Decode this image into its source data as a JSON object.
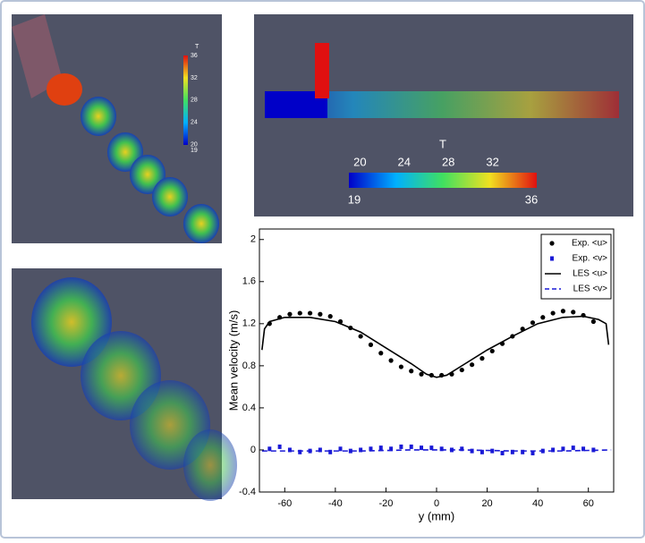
{
  "colorbars": [
    {
      "title": "T",
      "min": 19,
      "max": 36,
      "ticks": [
        20,
        24,
        28,
        32
      ],
      "orientation": "vertical"
    },
    {
      "title": "T",
      "min": 19,
      "max": 36,
      "ticks": [
        20,
        24,
        28,
        32
      ],
      "orientation": "horizontal"
    }
  ],
  "chart_data": {
    "type": "line",
    "xlabel": "y (mm)",
    "ylabel": "Mean velocity (m/s)",
    "xlim": [
      -70,
      70
    ],
    "xticks": [
      -60,
      -40,
      -20,
      0,
      20,
      40,
      60
    ],
    "ylim": [
      -0.4,
      2.1
    ],
    "yticks": [
      -0.4,
      0,
      0.4,
      0.8,
      1.2,
      1.6,
      2
    ],
    "legend": "upper right",
    "series": [
      {
        "name": "Exp. <u>",
        "color": "#000000",
        "marker": "circle",
        "linestyle": "none",
        "x": [
          -66,
          -62,
          -58,
          -54,
          -50,
          -46,
          -42,
          -38,
          -34,
          -30,
          -26,
          -22,
          -18,
          -14,
          -10,
          -6,
          -2,
          2,
          6,
          10,
          14,
          18,
          22,
          26,
          30,
          34,
          38,
          42,
          46,
          50,
          54,
          58,
          62
        ],
        "values": [
          1.2,
          1.26,
          1.29,
          1.3,
          1.3,
          1.29,
          1.27,
          1.22,
          1.16,
          1.08,
          1.0,
          0.92,
          0.85,
          0.79,
          0.75,
          0.72,
          0.71,
          0.71,
          0.72,
          0.76,
          0.81,
          0.87,
          0.94,
          1.01,
          1.08,
          1.15,
          1.21,
          1.26,
          1.3,
          1.32,
          1.31,
          1.28,
          1.22
        ]
      },
      {
        "name": "Exp. <v>",
        "color": "#1a1ad6",
        "marker": "square",
        "linestyle": "none",
        "x": [
          -66,
          -62,
          -58,
          -54,
          -50,
          -46,
          -42,
          -38,
          -34,
          -30,
          -26,
          -22,
          -18,
          -14,
          -10,
          -6,
          -2,
          2,
          6,
          10,
          14,
          18,
          22,
          26,
          30,
          34,
          38,
          42,
          46,
          50,
          54,
          58,
          62
        ],
        "values": [
          0.01,
          0.03,
          0.0,
          -0.02,
          -0.01,
          0.0,
          -0.02,
          0.01,
          -0.01,
          0.0,
          0.01,
          0.02,
          0.01,
          0.03,
          0.03,
          0.02,
          0.02,
          0.01,
          0.0,
          0.01,
          -0.01,
          -0.02,
          -0.01,
          -0.03,
          -0.02,
          -0.02,
          -0.03,
          -0.01,
          0.0,
          0.01,
          0.02,
          0.01,
          0.0
        ]
      },
      {
        "name": "LES <u>",
        "color": "#000000",
        "marker": "none",
        "linestyle": "solid",
        "x": [
          -69,
          -68,
          -66,
          -60,
          -50,
          -40,
          -30,
          -20,
          -10,
          -4,
          0,
          4,
          10,
          20,
          30,
          40,
          50,
          58,
          64,
          67,
          68
        ],
        "values": [
          0.95,
          1.15,
          1.22,
          1.26,
          1.26,
          1.22,
          1.12,
          0.97,
          0.82,
          0.72,
          0.69,
          0.71,
          0.8,
          0.95,
          1.08,
          1.2,
          1.26,
          1.27,
          1.24,
          1.2,
          1.0
        ]
      },
      {
        "name": "LES <v>",
        "color": "#1a1ad6",
        "marker": "none",
        "linestyle": "dashed",
        "x": [
          -69,
          -50,
          -30,
          -10,
          0,
          10,
          30,
          50,
          69
        ],
        "values": [
          -0.01,
          -0.01,
          -0.01,
          0.0,
          0.0,
          0.0,
          -0.01,
          -0.01,
          0.0
        ]
      }
    ]
  }
}
